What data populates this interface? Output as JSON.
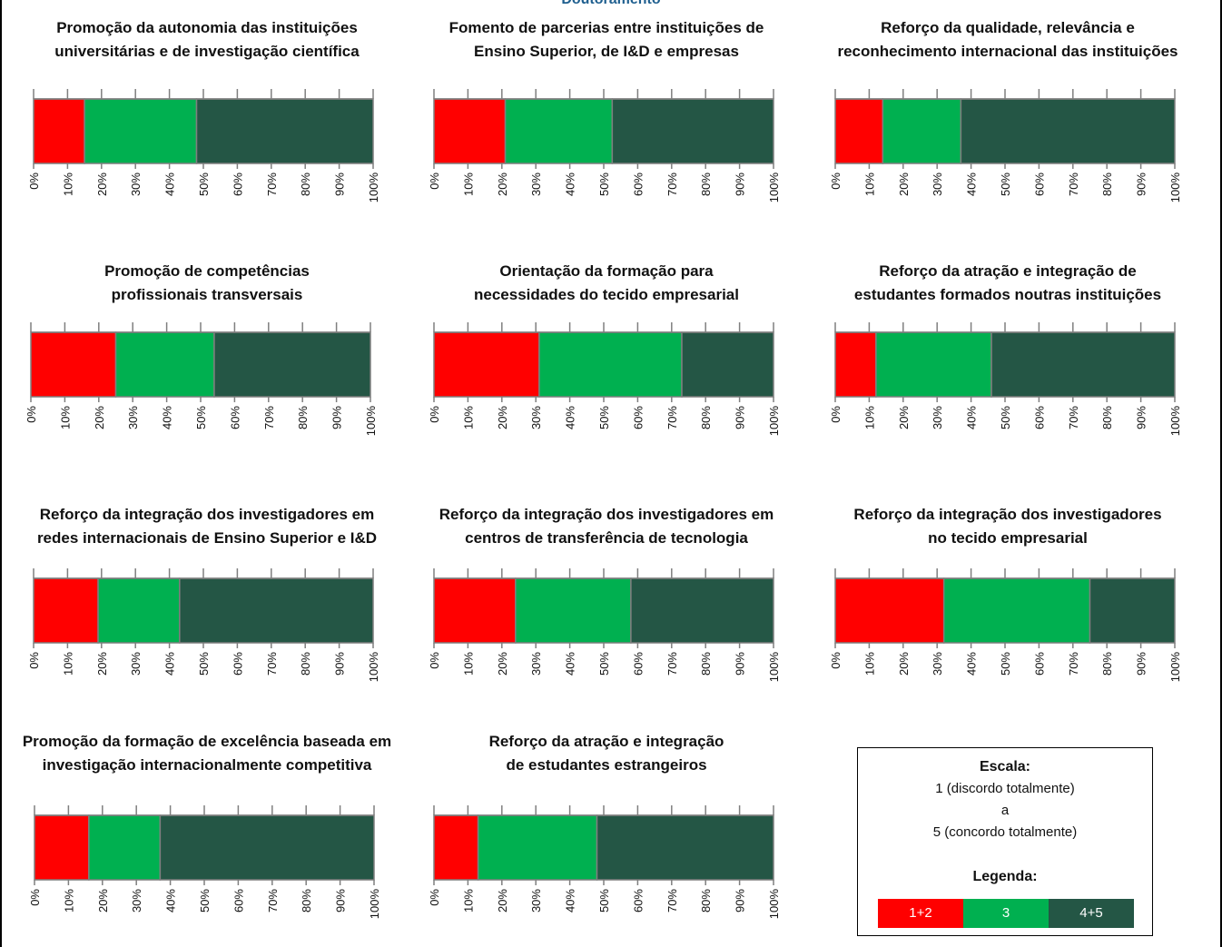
{
  "page": {
    "title": "Doutoramento"
  },
  "colors": {
    "c12": "#ff0000",
    "c3": "#00b050",
    "c45": "#245645"
  },
  "ticks": [
    "0%",
    "10%",
    "20%",
    "30%",
    "40%",
    "50%",
    "60%",
    "70%",
    "80%",
    "90%",
    "100%"
  ],
  "chart_data": [
    {
      "type": "bar",
      "title_lines": [
        "Promoção da autonomia das instituições",
        "universitárias e de investigação científica"
      ],
      "series": [
        {
          "name": "1+2",
          "values": [
            15
          ]
        },
        {
          "name": "3",
          "values": [
            33
          ]
        },
        {
          "name": "4+5",
          "values": [
            52
          ]
        }
      ],
      "xlim": [
        0,
        100
      ]
    },
    {
      "type": "bar",
      "title_lines": [
        "Fomento de parcerias entre instituições de",
        "Ensino Superior, de I&D e empresas"
      ],
      "series": [
        {
          "name": "1+2",
          "values": [
            21
          ]
        },
        {
          "name": "3",
          "values": [
            31.5
          ]
        },
        {
          "name": "4+5",
          "values": [
            47.5
          ]
        }
      ],
      "xlim": [
        0,
        100
      ]
    },
    {
      "type": "bar",
      "title_lines": [
        "Reforço da qualidade, relevância e",
        "reconhecimento internacional das instituições"
      ],
      "series": [
        {
          "name": "1+2",
          "values": [
            14
          ]
        },
        {
          "name": "3",
          "values": [
            23
          ]
        },
        {
          "name": "4+5",
          "values": [
            63
          ]
        }
      ],
      "xlim": [
        0,
        100
      ]
    },
    {
      "type": "bar",
      "title_lines": [
        "Promoção de competências",
        "profissionais transversais"
      ],
      "series": [
        {
          "name": "1+2",
          "values": [
            25
          ]
        },
        {
          "name": "3",
          "values": [
            29
          ]
        },
        {
          "name": "4+5",
          "values": [
            46
          ]
        }
      ],
      "xlim": [
        0,
        100
      ]
    },
    {
      "type": "bar",
      "title_lines": [
        "Orientação da formação para",
        "necessidades do tecido empresarial"
      ],
      "series": [
        {
          "name": "1+2",
          "values": [
            31
          ]
        },
        {
          "name": "3",
          "values": [
            42
          ]
        },
        {
          "name": "4+5",
          "values": [
            27
          ]
        }
      ],
      "xlim": [
        0,
        100
      ]
    },
    {
      "type": "bar",
      "title_lines": [
        "Reforço da atração e integração de",
        "estudantes formados noutras instituições"
      ],
      "series": [
        {
          "name": "1+2",
          "values": [
            12
          ]
        },
        {
          "name": "3",
          "values": [
            34
          ]
        },
        {
          "name": "4+5",
          "values": [
            54
          ]
        }
      ],
      "xlim": [
        0,
        100
      ]
    },
    {
      "type": "bar",
      "title_lines": [
        "Reforço da integração dos investigadores em",
        "redes internacionais de Ensino Superior e I&D"
      ],
      "series": [
        {
          "name": "1+2",
          "values": [
            19
          ]
        },
        {
          "name": "3",
          "values": [
            24
          ]
        },
        {
          "name": "4+5",
          "values": [
            57
          ]
        }
      ],
      "xlim": [
        0,
        100
      ]
    },
    {
      "type": "bar",
      "title_lines": [
        "Reforço da integração dos investigadores em",
        "centros de transferência de tecnologia"
      ],
      "series": [
        {
          "name": "1+2",
          "values": [
            24
          ]
        },
        {
          "name": "3",
          "values": [
            34
          ]
        },
        {
          "name": "4+5",
          "values": [
            42
          ]
        }
      ],
      "xlim": [
        0,
        100
      ]
    },
    {
      "type": "bar",
      "title_lines": [
        "Reforço da integração dos investigadores",
        "no tecido empresarial"
      ],
      "series": [
        {
          "name": "1+2",
          "values": [
            32
          ]
        },
        {
          "name": "3",
          "values": [
            43
          ]
        },
        {
          "name": "4+5",
          "values": [
            25
          ]
        }
      ],
      "xlim": [
        0,
        100
      ]
    },
    {
      "type": "bar",
      "title_lines": [
        "Promoção da formação de excelência baseada em",
        "investigação internacionalmente competitiva"
      ],
      "series": [
        {
          "name": "1+2",
          "values": [
            16
          ]
        },
        {
          "name": "3",
          "values": [
            21
          ]
        },
        {
          "name": "4+5",
          "values": [
            63
          ]
        }
      ],
      "xlim": [
        0,
        100
      ]
    },
    {
      "type": "bar",
      "title_lines": [
        "Reforço da atração e integração",
        "de estudantes estrangeiros"
      ],
      "series": [
        {
          "name": "1+2",
          "values": [
            13
          ]
        },
        {
          "name": "3",
          "values": [
            35
          ]
        },
        {
          "name": "4+5",
          "values": [
            52
          ]
        }
      ],
      "xlim": [
        0,
        100
      ]
    }
  ],
  "legend": {
    "scale_title": "Escala:",
    "scale_line1": "1 (discordo totalmente)",
    "scale_line2": "a",
    "scale_line3": "5 (concordo totalmente)",
    "legend_title": "Legenda:",
    "items": [
      {
        "label": "1+2",
        "color": "#ff0000"
      },
      {
        "label": "3",
        "color": "#00b050"
      },
      {
        "label": "4+5",
        "color": "#245645"
      }
    ]
  }
}
